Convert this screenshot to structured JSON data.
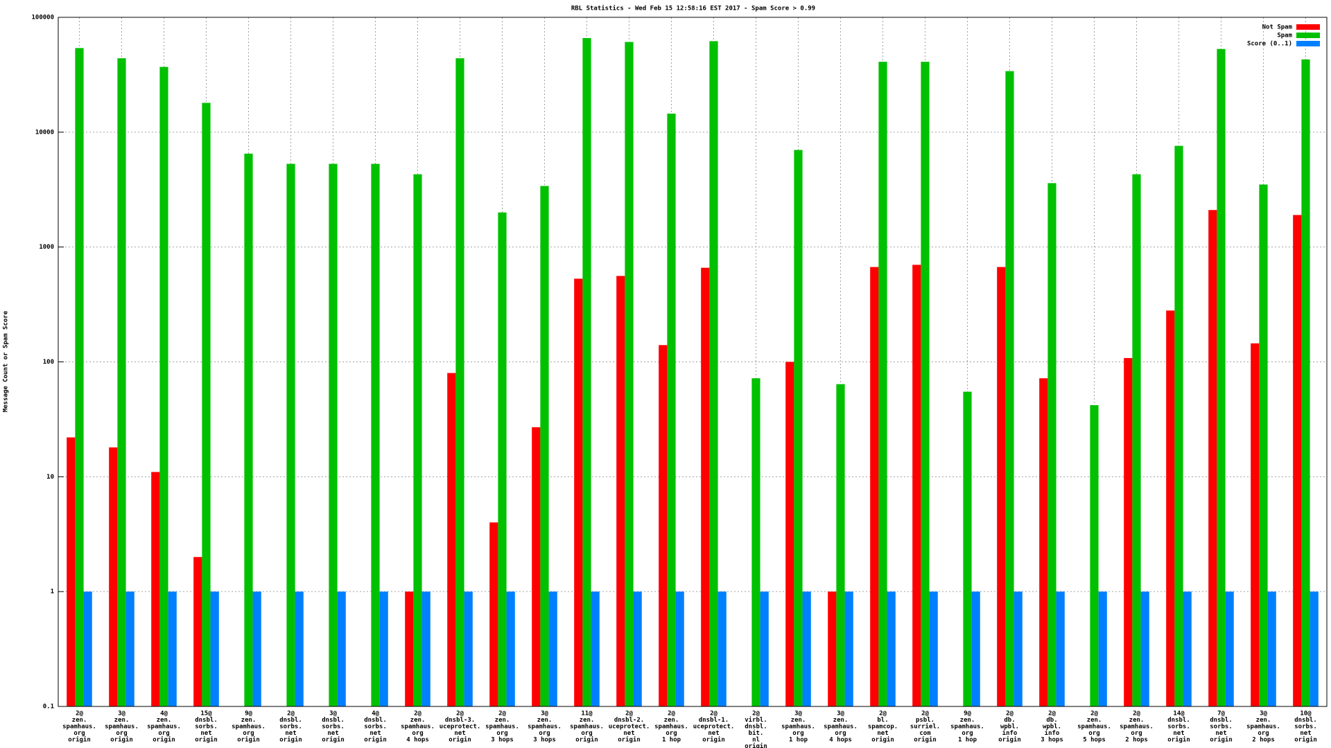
{
  "chart_data": {
    "type": "bar",
    "title": "RBL Statistics - Wed Feb 15 12:58:16 EST 2017 - Spam Score > 0.99",
    "y_label": "Message Count or Spam Score",
    "log_scale": true,
    "grid": true,
    "legend": "top-right",
    "categories": [
      [
        "2@",
        "zen.",
        "spamhaus.",
        "org",
        "origin"
      ],
      [
        "3@",
        "zen.",
        "spamhaus.",
        "org",
        "origin"
      ],
      [
        "4@",
        "zen.",
        "spamhaus.",
        "org",
        "origin"
      ],
      [
        "15@",
        "dnsbl.",
        "sorbs.",
        "net",
        "origin"
      ],
      [
        "9@",
        "zen.",
        "spamhaus.",
        "org",
        "origin"
      ],
      [
        "2@",
        "dnsbl.",
        "sorbs.",
        "net",
        "origin"
      ],
      [
        "3@",
        "dnsbl.",
        "sorbs.",
        "net",
        "origin"
      ],
      [
        "4@",
        "dnsbl.",
        "sorbs.",
        "net",
        "origin"
      ],
      [
        "2@",
        "zen.",
        "spamhaus.",
        "org",
        "4 hops"
      ],
      [
        "2@",
        "dnsbl-3.",
        "uceprotect.",
        "net",
        "origin"
      ],
      [
        "2@",
        "zen.",
        "spamhaus.",
        "org",
        "3 hops"
      ],
      [
        "3@",
        "zen.",
        "spamhaus.",
        "org",
        "3 hops"
      ],
      [
        "11@",
        "zen.",
        "spamhaus.",
        "org",
        "origin"
      ],
      [
        "2@",
        "dnsbl-2.",
        "uceprotect.",
        "net",
        "origin"
      ],
      [
        "2@",
        "zen.",
        "spamhaus.",
        "org",
        "1 hop"
      ],
      [
        "2@",
        "dnsbl-1.",
        "uceprotect.",
        "net",
        "origin"
      ],
      [
        "2@",
        "virbl.",
        "dnsbl.",
        "bit.",
        "nl",
        "origin"
      ],
      [
        "3@",
        "zen.",
        "spamhaus.",
        "org",
        "1 hop"
      ],
      [
        "3@",
        "zen.",
        "spamhaus.",
        "org",
        "4 hops"
      ],
      [
        "2@",
        "bl.",
        "spamcop.",
        "net",
        "origin"
      ],
      [
        "2@",
        "psbl.",
        "surriel.",
        "com",
        "origin"
      ],
      [
        "9@",
        "zen.",
        "spamhaus.",
        "org",
        "1 hop"
      ],
      [
        "2@",
        "db.",
        "wpbl.",
        "info",
        "origin"
      ],
      [
        "2@",
        "db.",
        "wpbl.",
        "info",
        "3 hops"
      ],
      [
        "2@",
        "zen.",
        "spamhaus.",
        "org",
        "5 hops"
      ],
      [
        "2@",
        "zen.",
        "spamhaus.",
        "org",
        "2 hops"
      ],
      [
        "14@",
        "dnsbl.",
        "sorbs.",
        "net",
        "origin"
      ],
      [
        "7@",
        "dnsbl.",
        "sorbs.",
        "net",
        "origin"
      ],
      [
        "3@",
        "zen.",
        "spamhaus.",
        "org",
        "2 hops"
      ],
      [
        "10@",
        "dnsbl.",
        "sorbs.",
        "net",
        "origin"
      ]
    ],
    "series": [
      {
        "name": "Not Spam",
        "color": "#ff0000",
        "values": [
          22,
          18,
          11,
          2,
          null,
          null,
          null,
          null,
          1,
          80,
          4,
          27,
          530,
          560,
          140,
          660,
          null,
          100,
          1,
          670,
          700,
          null,
          670,
          72,
          null,
          108,
          280,
          2100,
          145,
          1900
        ]
      },
      {
        "name": "Spam",
        "color": "#00c000",
        "values": [
          54000,
          44000,
          37000,
          18000,
          6500,
          5300,
          5300,
          5300,
          4300,
          44000,
          2000,
          3400,
          66000,
          61000,
          14500,
          62000,
          72,
          7000,
          64,
          41000,
          41000,
          55,
          34000,
          3600,
          42,
          4300,
          7600,
          53000,
          3500,
          43000
        ]
      },
      {
        "name": "Score (0..1)",
        "color": "#0080ff",
        "values": [
          1,
          1,
          1,
          1,
          1,
          1,
          1,
          1,
          1,
          1,
          1,
          1,
          1,
          1,
          1,
          1,
          1,
          1,
          1,
          1,
          1,
          1,
          1,
          1,
          1,
          1,
          1,
          1,
          1,
          1
        ]
      }
    ],
    "ylim": [
      0.1,
      100000
    ],
    "yticks": [
      0.1,
      1,
      10,
      100,
      1000,
      10000,
      100000
    ]
  }
}
